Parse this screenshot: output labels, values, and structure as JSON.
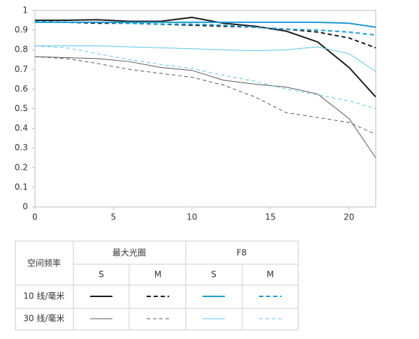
{
  "chart_data": {
    "type": "line",
    "x": [
      0,
      2,
      4,
      6,
      8,
      10,
      12,
      14,
      16,
      18,
      20,
      21.7
    ],
    "xlim": [
      0,
      21.7
    ],
    "xticks": [
      0,
      5,
      10,
      15,
      20
    ],
    "ylim": [
      0,
      1
    ],
    "yticks": [
      0,
      0.1,
      0.2,
      0.3,
      0.4,
      0.5,
      0.6,
      0.7,
      0.8,
      0.9,
      1
    ],
    "grid": false,
    "series": [
      {
        "color": "#1a1a1a",
        "width": 2,
        "dash": "none",
        "values": [
          0.95,
          0.95,
          0.953,
          0.945,
          0.945,
          0.965,
          0.935,
          0.92,
          0.895,
          0.84,
          0.71,
          0.56
        ]
      },
      {
        "color": "#1a1a1a",
        "width": 2,
        "dash": "6 4",
        "values": [
          0.945,
          0.94,
          0.935,
          0.935,
          0.93,
          0.925,
          0.92,
          0.915,
          0.905,
          0.89,
          0.86,
          0.81
        ]
      },
      {
        "color": "#1a9ad6",
        "width": 2,
        "dash": "none",
        "values": [
          0.94,
          0.94,
          0.94,
          0.94,
          0.94,
          0.94,
          0.94,
          0.94,
          0.94,
          0.94,
          0.935,
          0.915
        ]
      },
      {
        "color": "#1a9ad6",
        "width": 2,
        "dash": "6 4",
        "values": [
          0.945,
          0.94,
          0.94,
          0.935,
          0.93,
          0.93,
          0.925,
          0.915,
          0.905,
          0.9,
          0.89,
          0.875
        ]
      },
      {
        "color": "#555555",
        "width": 1,
        "dash": "none",
        "values": [
          0.765,
          0.76,
          0.755,
          0.74,
          0.71,
          0.695,
          0.645,
          0.625,
          0.61,
          0.575,
          0.45,
          0.25
        ]
      },
      {
        "color": "#555555",
        "width": 1,
        "dash": "5 4",
        "values": [
          0.765,
          0.755,
          0.73,
          0.7,
          0.68,
          0.66,
          0.62,
          0.56,
          0.48,
          0.455,
          0.43,
          0.37
        ]
      },
      {
        "color": "#5cc3ea",
        "width": 1,
        "dash": "none",
        "values": [
          0.82,
          0.82,
          0.82,
          0.815,
          0.81,
          0.805,
          0.8,
          0.795,
          0.8,
          0.815,
          0.78,
          0.69
        ]
      },
      {
        "color": "#5cc3ea",
        "width": 1,
        "dash": "5 4",
        "values": [
          0.82,
          0.81,
          0.78,
          0.75,
          0.725,
          0.705,
          0.67,
          0.64,
          0.6,
          0.57,
          0.54,
          0.5
        ]
      }
    ]
  },
  "legend_table": {
    "corner": "空间频率",
    "groups": [
      "最大光圈",
      "F8"
    ],
    "subheads": [
      "S",
      "M",
      "S",
      "M"
    ],
    "rows": [
      "10 线/毫米",
      "30 线/毫米"
    ]
  }
}
